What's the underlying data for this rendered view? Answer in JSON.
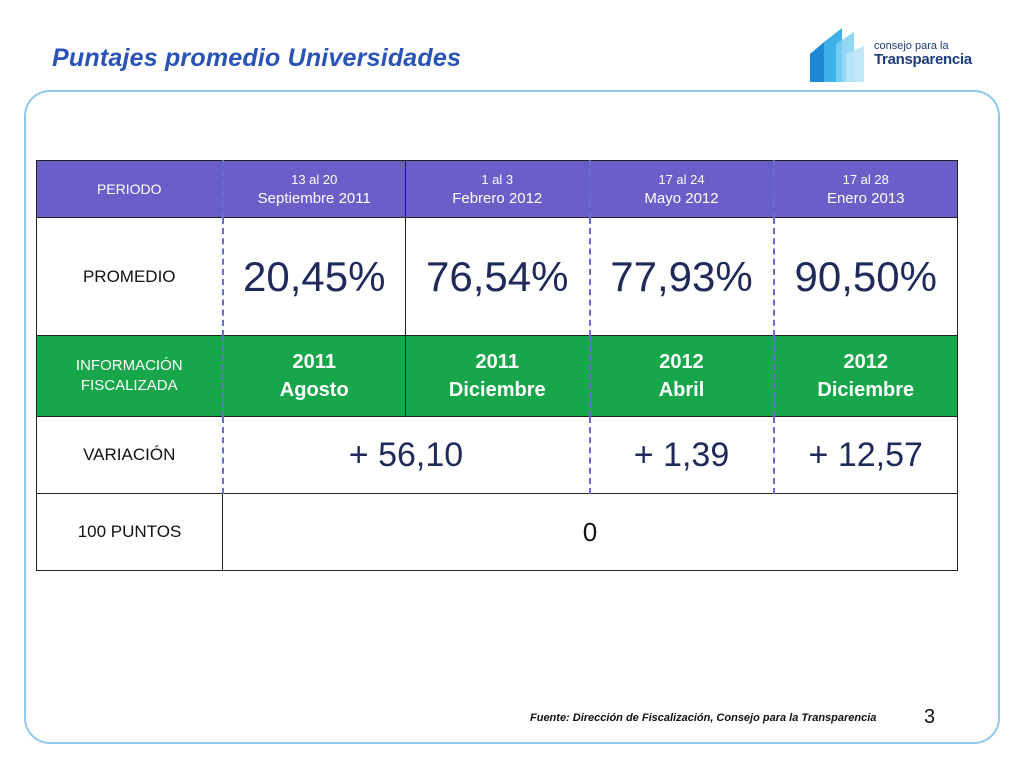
{
  "title": "Puntajes promedio Universidades",
  "logo": {
    "line1": "consejo para la",
    "line2": "Transparencia"
  },
  "table": {
    "period_label": "PERIODO",
    "periods": [
      {
        "dates": "13 al 20",
        "month": "Septiembre",
        "year": "2011"
      },
      {
        "dates": "1 al 3",
        "month": "Febrero",
        "year": "2012"
      },
      {
        "dates": "17 al 24",
        "month": "Mayo",
        "year": "2012"
      },
      {
        "dates": "17 al 28",
        "month": "Enero",
        "year": "2013"
      }
    ],
    "promedio_label": "PROMEDIO",
    "promedios": [
      "20,45%",
      "76,54%",
      "77,93%",
      "90,50%"
    ],
    "info_label_line1": "INFORMACIÓN",
    "info_label_line2": "FISCALIZADA",
    "info": [
      {
        "year": "2011",
        "month": "Agosto"
      },
      {
        "year": "2011",
        "month": "Diciembre"
      },
      {
        "year": "2012",
        "month": "Abril"
      },
      {
        "year": "2012",
        "month": "Diciembre"
      }
    ],
    "variacion_label": "VARIACIÓN",
    "variaciones": [
      "+ 56,10",
      "+ 1,39",
      "+ 12,57"
    ],
    "puntos_label": "100 PUNTOS",
    "puntos_value": "0"
  },
  "source": "Fuente: Dirección de Fiscalización, Consejo para la Transparencia",
  "page_number": "3",
  "colors": {
    "header": "#6a5fc9",
    "green": "#18a64b",
    "title": "#2a53b8",
    "frame": "#8ec8ec"
  }
}
